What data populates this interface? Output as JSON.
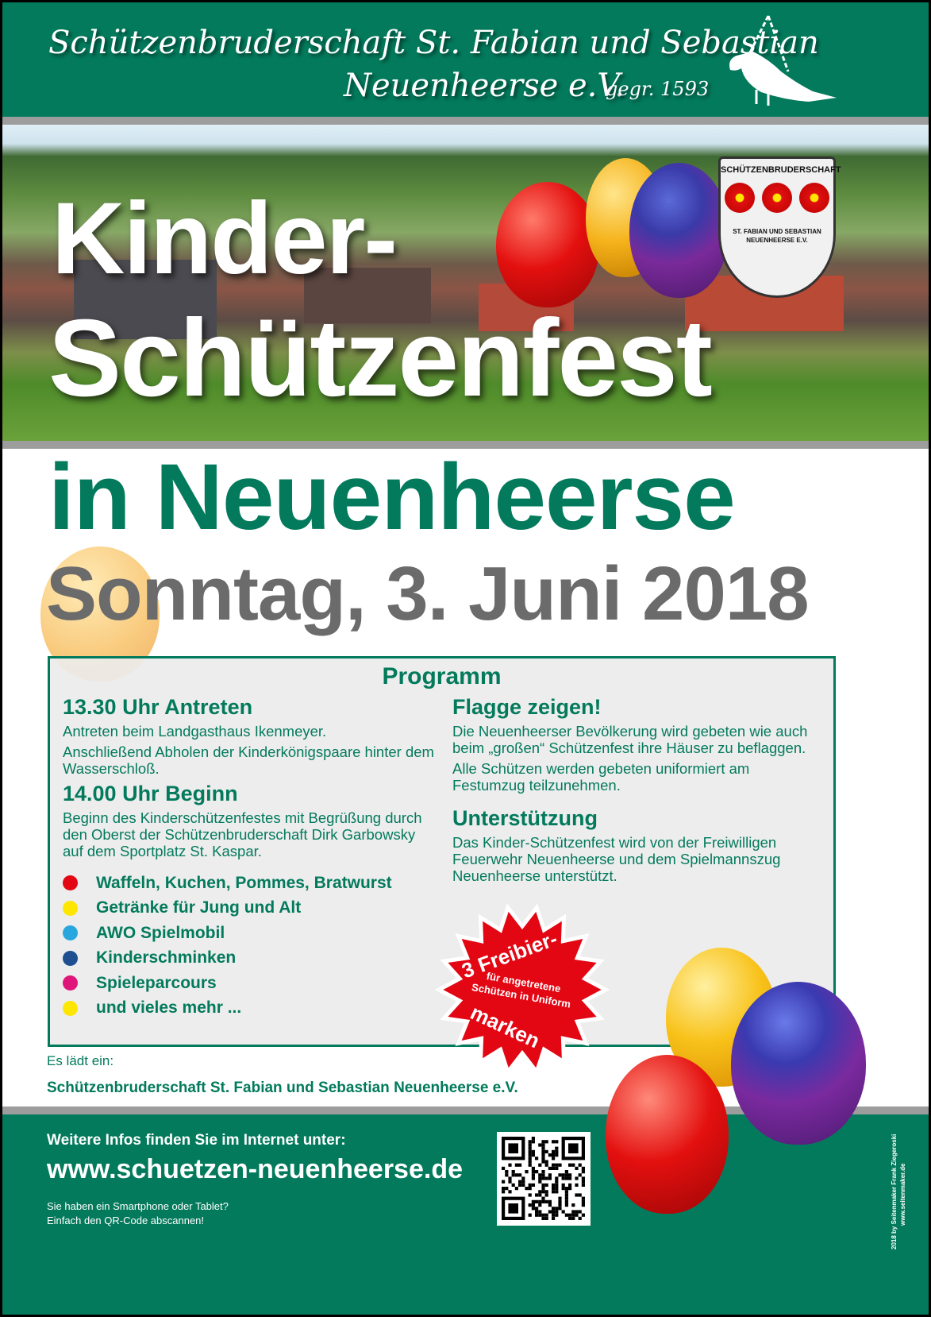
{
  "header": {
    "line1": "Schützenbruderschaft St. Fabian und Sebastian",
    "line2": "Neuenheerse e.V.",
    "founded": "gegr. 1593",
    "logo": "bird-on-chain-icon"
  },
  "hero": {
    "title_line1": "Kinder-",
    "title_line2": "Schützenfest",
    "emblem": {
      "top_text": "SCHÜTZENBRUDERSCHAFT",
      "bottom_text": "ST. FABIAN UND SEBASTIAN NEUENHEERSE E.V.",
      "icon": "three-roses-shield-icon"
    }
  },
  "event": {
    "place": "in Neuenheerse",
    "date": "Sonntag, 3. Juni 2018"
  },
  "program": {
    "heading": "Programm",
    "left": [
      {
        "title": "13.30 Uhr Antreten",
        "paragraphs": [
          "Antreten beim Landgasthaus Ikenmeyer.",
          "Anschließend Abholen der Kinderkönigspaare hinter dem Wasserschloß."
        ]
      },
      {
        "title": "14.00 Uhr Beginn",
        "paragraphs": [
          "Beginn des Kinderschützenfestes mit Begrüßung durch den Oberst der Schützenbruderschaft Dirk Garbowsky auf dem Sportplatz St. Kaspar."
        ]
      }
    ],
    "bullets": [
      {
        "label": "Waffeln, Kuchen, Pommes, Bratwurst",
        "color": "#e30613"
      },
      {
        "label": "Getränke für Jung und Alt",
        "color": "#ffe600"
      },
      {
        "label": "AWO Spielmobil",
        "color": "#2aa6df"
      },
      {
        "label": "Kinderschminken",
        "color": "#1d4f91"
      },
      {
        "label": "Spieleparcours",
        "color": "#e0157a"
      },
      {
        "label": "und vieles mehr ...",
        "color": "#ffe600"
      }
    ],
    "right": [
      {
        "title": "Flagge zeigen!",
        "paragraphs": [
          "Die Neuenheerser Bevölkerung wird gebeten wie auch beim „großen“ Schützenfest ihre Häuser zu beflaggen.",
          "Alle Schützen werden gebeten uniformiert am Festumzug teilzunehmen."
        ]
      },
      {
        "title": "Unterstützung",
        "paragraphs": [
          "Das Kinder-Schützenfest wird von der Freiwilligen Feuerwehr Neuenheerse und dem Spielmannszug Neuenheerse unterstützt."
        ]
      }
    ]
  },
  "starburst": {
    "top": "3 Freibier-",
    "middle1": "für angetretene",
    "middle2": "Schützen in Uniform",
    "bottom": "marken",
    "color": "#e30613"
  },
  "invite": {
    "label": "Es lädt ein:",
    "org": "Schützenbruderschaft St. Fabian und Sebastian Neuenheerse e.V."
  },
  "footer": {
    "info": "Weitere Infos finden Sie im Internet unter:",
    "url": "www.schuetzen-neuenheerse.de",
    "qr_line1": "Sie haben ein Smartphone oder Tablet?",
    "qr_line2": "Einfach den QR-Code abscannen!",
    "qr": "qr-code-icon",
    "credit1": "2018 by Seitenmaker Frank Ziegeroski",
    "credit2": "www.seitenmaker.de"
  },
  "colors": {
    "brand_green": "#037a5c",
    "date_gray": "#6b6b6b",
    "strip_gray": "#9d9d9d"
  }
}
